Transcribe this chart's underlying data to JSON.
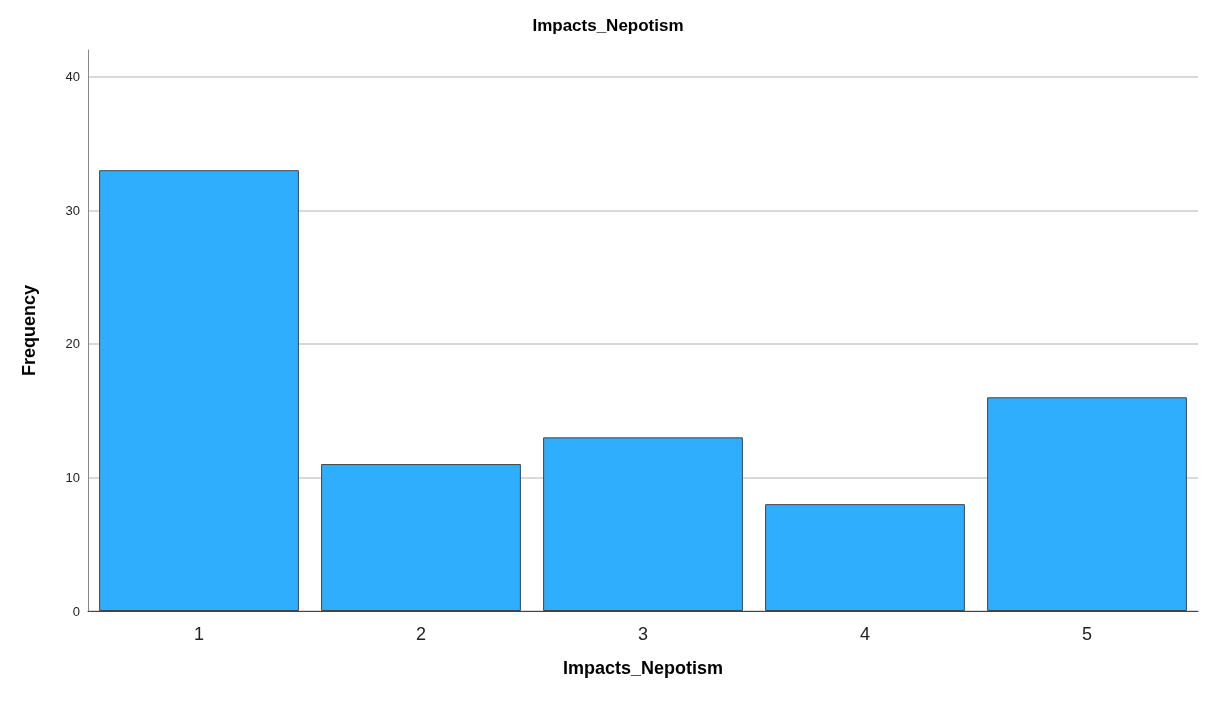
{
  "chart_data": {
    "type": "bar",
    "title": "Impacts_Nepotism",
    "xlabel": "Impacts_Nepotism",
    "ylabel": "Frequency",
    "categories": [
      "1",
      "2",
      "3",
      "4",
      "5"
    ],
    "values": [
      33,
      11,
      13,
      8,
      16
    ],
    "color": "#30aefe",
    "ylim": [
      0,
      42
    ],
    "yticks": [
      0,
      10,
      20,
      30,
      40
    ],
    "grid": "y"
  }
}
